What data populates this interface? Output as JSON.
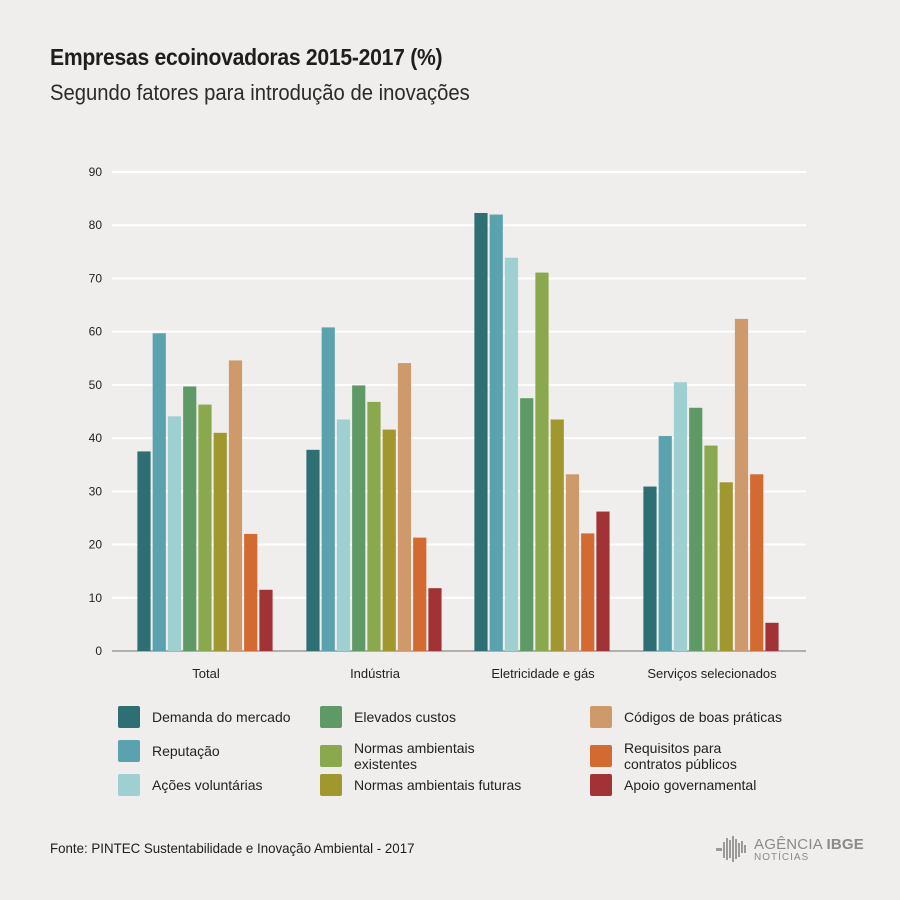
{
  "chart_data": {
    "type": "bar",
    "title": "Empresas ecoinovadoras 2015-2017 (%)",
    "subtitle": "Segundo fatores para introdução de inovações",
    "categories": [
      "Total",
      "Indústria",
      "Eletricidade e gás",
      "Serviços selecionados"
    ],
    "ylim": [
      0,
      90
    ],
    "yticks": [
      0,
      10,
      20,
      30,
      40,
      50,
      60,
      70,
      80,
      90
    ],
    "grid": true,
    "legend_position": "bottom",
    "series": [
      {
        "name": "Demanda do mercado",
        "color": "#2e6f74",
        "values": [
          37.5,
          37.8,
          82.3,
          30.9
        ]
      },
      {
        "name": "Reputação",
        "color": "#5aa2ae",
        "values": [
          59.7,
          60.8,
          82.0,
          40.4
        ]
      },
      {
        "name": "Ações voluntárias",
        "color": "#9ed0d1",
        "values": [
          44.1,
          43.5,
          73.9,
          50.5
        ]
      },
      {
        "name": "Elevados custos",
        "color": "#5f9a66",
        "values": [
          49.7,
          49.9,
          47.5,
          45.7
        ]
      },
      {
        "name": "Normas ambientais existentes",
        "color": "#8aa84e",
        "values": [
          46.3,
          46.8,
          71.1,
          38.6
        ]
      },
      {
        "name": "Normas ambientais futuras",
        "color": "#a1972f",
        "values": [
          41.0,
          41.6,
          43.5,
          31.7
        ]
      },
      {
        "name": "Códigos de boas práticas",
        "color": "#cf9a6b",
        "values": [
          54.6,
          54.1,
          33.2,
          62.4
        ]
      },
      {
        "name": "Requisitos para contratos públicos",
        "color": "#d36a32",
        "values": [
          22.0,
          21.3,
          22.1,
          33.2
        ]
      },
      {
        "name": "Apoio governamental",
        "color": "#a13336",
        "values": [
          11.5,
          11.8,
          26.2,
          5.3
        ]
      }
    ]
  },
  "source": "Fonte: PINTEC Sustentabilidade e Inovação Ambiental - 2017",
  "logo": {
    "brand": "AGÊNCIA",
    "brand_bold": "IBGE",
    "tagline": "NOTÍCIAS"
  }
}
